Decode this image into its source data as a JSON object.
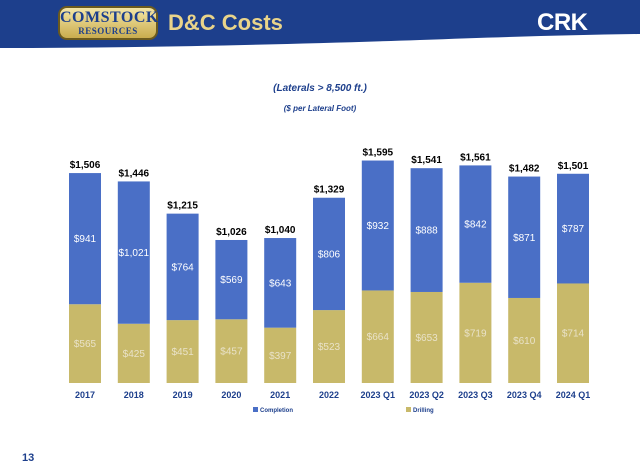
{
  "header": {
    "logo_line1": "COMSTOCK",
    "logo_line2": "RESOURCES",
    "title": "D&C Costs",
    "ticker": "CRK"
  },
  "colors": {
    "header_bg": "#1d3f8c",
    "completion": "#4a6fc6",
    "drilling": "#c8b96a",
    "title_gold": "#e9d48a"
  },
  "chart_data": {
    "type": "bar",
    "stacked": true,
    "subtitle": "(Laterals > 8,500 ft.)",
    "unit_note": "($ per Lateral Foot)",
    "categories": [
      "2017",
      "2018",
      "2019",
      "2020",
      "2021",
      "2022",
      "2023 Q1",
      "2023 Q2",
      "2023 Q3",
      "2023 Q4",
      "2024 Q1"
    ],
    "series": [
      {
        "name": "Drilling",
        "values": [
          565,
          425,
          451,
          457,
          397,
          523,
          664,
          653,
          719,
          610,
          714
        ],
        "labels": [
          "$565",
          "$425",
          "$451",
          "$457",
          "$397",
          "$523",
          "$664",
          "$653",
          "$719",
          "$610",
          "$714"
        ]
      },
      {
        "name": "Completion",
        "values": [
          941,
          1021,
          764,
          569,
          643,
          806,
          932,
          888,
          842,
          871,
          787
        ],
        "labels": [
          "$941",
          "$1,021",
          "$764",
          "$569",
          "$643",
          "$806",
          "$932",
          "$888",
          "$842",
          "$871",
          "$787"
        ]
      }
    ],
    "totals": [
      "$1,506",
      "$1,446",
      "$1,215",
      "$1,026",
      "$1,040",
      "$1,329",
      "$1,595",
      "$1,541",
      "$1,561",
      "$1,482",
      "$1,501"
    ],
    "total_values": [
      1506,
      1446,
      1215,
      1026,
      1040,
      1329,
      1595,
      1541,
      1561,
      1482,
      1501
    ],
    "legend": [
      "Completion",
      "Drilling"
    ],
    "legend_position": "bottom",
    "ylim": [
      0,
      1650
    ],
    "grid": false
  },
  "footer": {
    "page_number": "13"
  }
}
